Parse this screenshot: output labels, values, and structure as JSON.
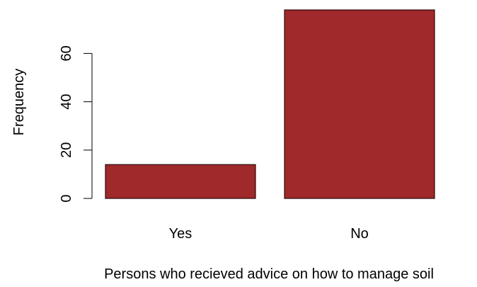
{
  "chart_data": {
    "type": "bar",
    "title": "",
    "xlabel": "Persons who recieved advice on how to manage soil",
    "ylabel": "Frequency",
    "categories": [
      "Yes",
      "No"
    ],
    "values": [
      14,
      78
    ],
    "ylim": [
      0,
      78
    ],
    "yticks": [
      0,
      20,
      40,
      60
    ],
    "ytick_labels": [
      "0",
      "20",
      "40",
      "60"
    ],
    "grid": false,
    "legend": "none",
    "colors": {
      "bar_fill": "#a0292b",
      "bar_stroke": "#2b0b0b",
      "axis": "#000000"
    }
  }
}
